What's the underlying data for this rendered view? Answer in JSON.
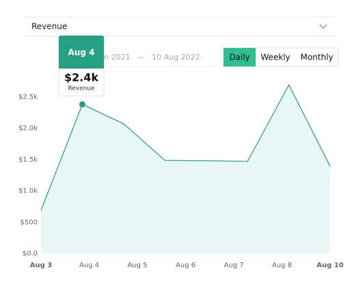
{
  "dropdown": {
    "label": "Revenue"
  },
  "date_range": {
    "start": "n 2021",
    "separator": "—",
    "end": "10 Aug 2022"
  },
  "period_buttons": [
    "Daily",
    "Weekly",
    "Monthly"
  ],
  "tooltip": {
    "title": "Aug 4",
    "value": "$2.4k",
    "label": "Revenue"
  },
  "chart_data": {
    "type": "area",
    "values": [
      690,
      2380,
      2070,
      1485,
      1480,
      1470,
      2690,
      1390
    ],
    "color": "#3a9e86",
    "xticks": [
      "Aug 3",
      "Aug 4",
      "Aug 5",
      "Aug 6",
      "Aug 7",
      "Aug 8",
      "Aug 10"
    ],
    "ylim": [
      0,
      2700
    ],
    "yticks": [
      {
        "value": 0,
        "label": "$0.0"
      },
      {
        "value": 500,
        "label": "$500"
      },
      {
        "value": 1000,
        "label": "$1.0k"
      },
      {
        "value": 1500,
        "label": "$1.5k"
      },
      {
        "value": 2000,
        "label": "$2.0k"
      },
      {
        "value": 2500,
        "label": "$2.5k"
      }
    ]
  }
}
